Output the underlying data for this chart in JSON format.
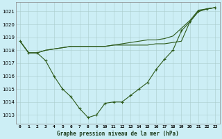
{
  "title": "Graphe pression niveau de la mer (hPa)",
  "bg_color": "#cceef5",
  "line_color": "#2d5a1b",
  "xlim": [
    -0.5,
    23.5
  ],
  "ylim": [
    1012.3,
    1021.7
  ],
  "yticks": [
    1013,
    1014,
    1015,
    1016,
    1017,
    1018,
    1019,
    1020,
    1021
  ],
  "x_labels": [
    "0",
    "1",
    "2",
    "3",
    "4",
    "5",
    "6",
    "7",
    "8",
    "9",
    "10",
    "11",
    "12",
    "13",
    "14",
    "15",
    "16",
    "17",
    "18",
    "19",
    "20",
    "21",
    "22",
    "23"
  ],
  "line_main": [
    1018.7,
    1017.8,
    1017.8,
    1017.2,
    1016.0,
    1015.0,
    1014.4,
    1013.5,
    1012.8,
    1013.0,
    1013.9,
    1014.0,
    1014.0,
    1014.5,
    1015.0,
    1015.5,
    1016.5,
    1017.3,
    1018.0,
    1019.5,
    1020.2,
    1021.0,
    1021.2,
    1021.3
  ],
  "line_flat1": [
    1018.7,
    1017.8,
    1017.8,
    1018.0,
    1018.1,
    1018.2,
    1018.3,
    1018.3,
    1018.3,
    1018.3,
    1018.3,
    1018.4,
    1018.4,
    1018.4,
    1018.4,
    1018.4,
    1018.5,
    1018.5,
    1018.6,
    1018.7,
    1020.2,
    1021.0,
    1021.2,
    1021.3
  ],
  "line_flat2": [
    1018.7,
    1017.8,
    1017.8,
    1018.0,
    1018.1,
    1018.2,
    1018.3,
    1018.3,
    1018.3,
    1018.3,
    1018.3,
    1018.4,
    1018.5,
    1018.6,
    1018.7,
    1018.8,
    1018.8,
    1018.9,
    1019.1,
    1019.7,
    1020.3,
    1021.1,
    1021.2,
    1021.3
  ]
}
